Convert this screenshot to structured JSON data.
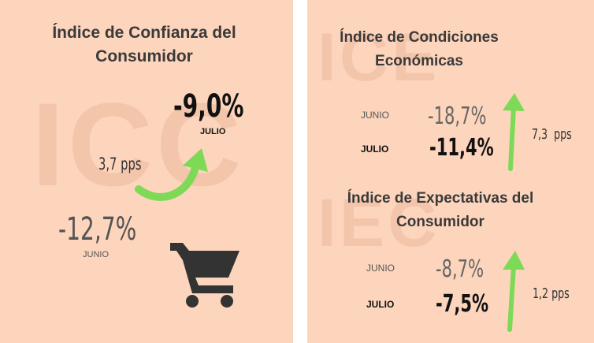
{
  "left": {
    "title": "Índice de Confianza del Consumidor",
    "watermark": "ICC",
    "current": {
      "value": "-9,0%",
      "label": "JULIO"
    },
    "previous": {
      "value": "-12,7%",
      "label": "JUNIO"
    },
    "change": "3,7 pps"
  },
  "right": {
    "conditions": {
      "title": "Índice de Condiciones Económicas",
      "watermark": "ICE",
      "previous": {
        "label": "JUNIO",
        "value": "-18,7%"
      },
      "current": {
        "label": "JULIO",
        "value": "-11,4%"
      },
      "change": "7,3  pps"
    },
    "expectations": {
      "title": "Índice de Expectativas del Consumidor",
      "watermark": "IEC",
      "previous": {
        "label": "JUNIO",
        "value": "-8,7%"
      },
      "current": {
        "label": "JULIO",
        "value": "-7,5%"
      },
      "change": "1,2 pps"
    }
  }
}
